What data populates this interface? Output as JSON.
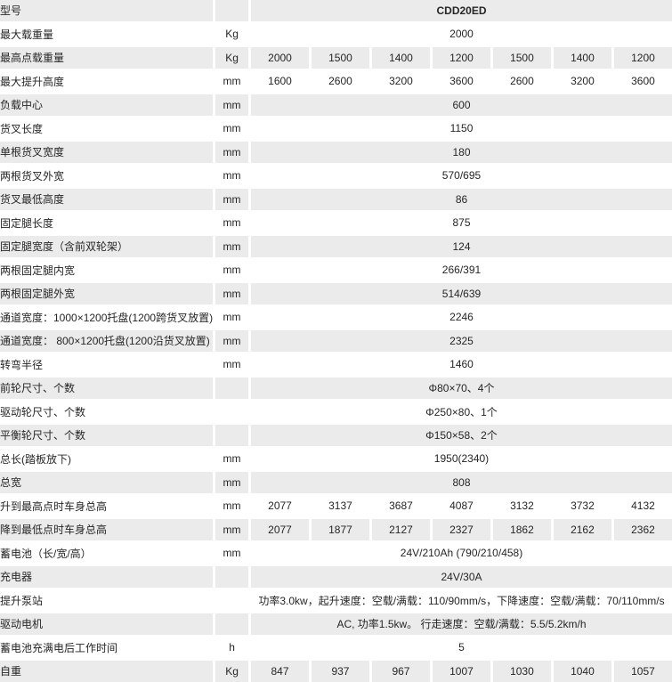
{
  "colors": {
    "row_gray": "#ebebeb",
    "row_white": "#ffffff",
    "text": "#262626"
  },
  "table": {
    "model_header": "CDD20ED",
    "rows": [
      {
        "label": "型号",
        "unit": "",
        "span": "CDD20ED",
        "bold": true
      },
      {
        "label": "最大载重量",
        "unit": "Kg",
        "span": "2000"
      },
      {
        "label": "最高点载重量",
        "unit": "Kg",
        "cells": [
          "2000",
          "1500",
          "1400",
          "1200",
          "1500",
          "1400",
          "1200"
        ]
      },
      {
        "label": "最大提升高度",
        "unit": "mm",
        "cells": [
          "1600",
          "2600",
          "3200",
          "3600",
          "2600",
          "3200",
          "3600"
        ]
      },
      {
        "label": "负载中心",
        "unit": "mm",
        "span": "600"
      },
      {
        "label": "货叉长度",
        "unit": "mm",
        "span": "1150"
      },
      {
        "label": "单根货叉宽度",
        "unit": "mm",
        "span": "180"
      },
      {
        "label": "两根货叉外宽",
        "unit": "mm",
        "span": "570/695"
      },
      {
        "label": "货叉最低高度",
        "unit": "mm",
        "span": "86"
      },
      {
        "label": "固定腿长度",
        "unit": "mm",
        "span": "875"
      },
      {
        "label": "固定腿宽度（含前双轮架）",
        "unit": "mm",
        "span": "124"
      },
      {
        "label": "两根固定腿内宽",
        "unit": "mm",
        "span": "266/391"
      },
      {
        "label": "两根固定腿外宽",
        "unit": "mm",
        "span": "514/639"
      },
      {
        "label": "通道宽度：1000×1200托盘(1200跨货叉放置)",
        "unit": "mm",
        "span": "2246"
      },
      {
        "label": "通道宽度： 800×1200托盘(1200沿货叉放置)",
        "unit": "mm",
        "span": "2325"
      },
      {
        "label": "转弯半径",
        "unit": "mm",
        "span": "1460"
      },
      {
        "label": "前轮尺寸、个数",
        "unit": "",
        "span": "Φ80×70、4个"
      },
      {
        "label": "驱动轮尺寸、个数",
        "unit": "",
        "span": "Φ250×80、1个"
      },
      {
        "label": "平衡轮尺寸、个数",
        "unit": "",
        "span": "Φ150×58、2个"
      },
      {
        "label": "总长(踏板放下)",
        "unit": "mm",
        "span": "1950(2340)"
      },
      {
        "label": "总宽",
        "unit": "mm",
        "span": "808"
      },
      {
        "label": "升到最高点时车身总高",
        "unit": "mm",
        "cells": [
          "2077",
          "3137",
          "3687",
          "4087",
          "3132",
          "3732",
          "4132"
        ]
      },
      {
        "label": "降到最低点时车身总高",
        "unit": "mm",
        "cells": [
          "2077",
          "1877",
          "2127",
          "2327",
          "1862",
          "2162",
          "2362"
        ]
      },
      {
        "label": "蓄电池（长/宽/高）",
        "unit": "mm",
        "span": "24V/210Ah (790/210/458)"
      },
      {
        "label": "充电器",
        "unit": "",
        "span": "24V/30A"
      },
      {
        "label": "提升泵站",
        "unit": "",
        "span": "功率3.0kw，起升速度：空载/满载：110/90mm/s，下降速度：空载/满载：70/110mm/s"
      },
      {
        "label": "驱动电机",
        "unit": "",
        "span": "AC, 功率1.5kw。 行走速度：空载/满载：5.5/5.2km/h"
      },
      {
        "label": "蓄电池充满电后工作时间",
        "unit": "h",
        "span": "5"
      },
      {
        "label": "自重",
        "unit": "Kg",
        "cells": [
          "847",
          "937",
          "967",
          "1007",
          "1030",
          "1040",
          "1057"
        ]
      }
    ]
  }
}
